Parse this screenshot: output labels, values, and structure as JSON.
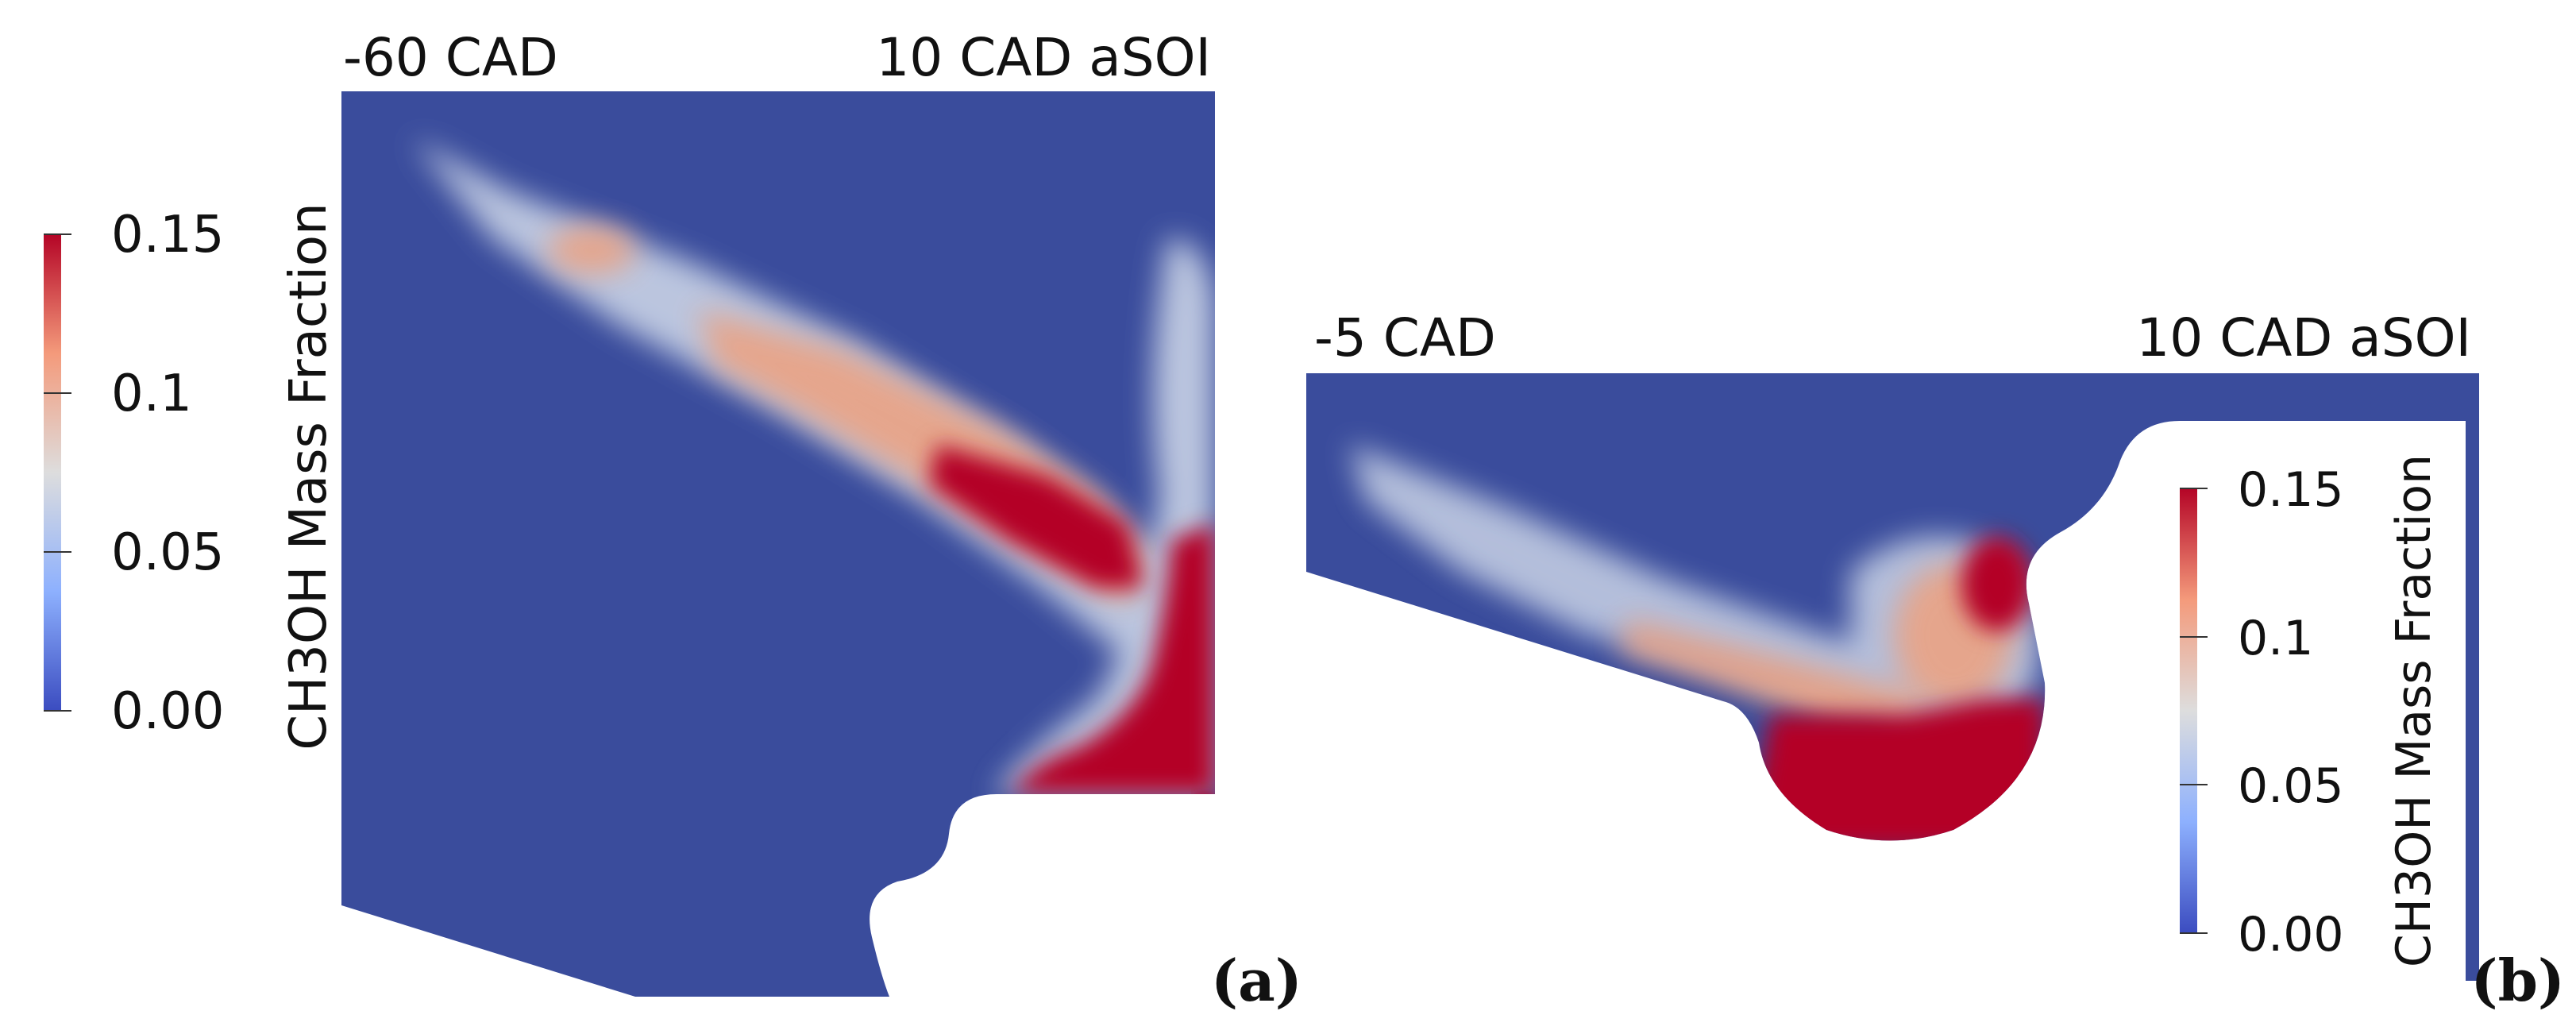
{
  "colors": {
    "low": "#3a4c9c",
    "mid": "#dcdcdc",
    "high": "#b40426",
    "background": "#ffffff"
  },
  "colorbar": {
    "title": "CH3OH Mass Fraction",
    "ticks": [
      "0.15",
      "0.1",
      "0.05",
      "0.00"
    ],
    "range": [
      0.0,
      0.15
    ]
  },
  "panels": [
    {
      "tag": "(a)",
      "label_left": "-60 CAD",
      "label_right": "10 CAD aSOI"
    },
    {
      "tag": "(b)",
      "label_left": "-5 CAD",
      "label_right": "10 CAD aSOI"
    }
  ]
}
